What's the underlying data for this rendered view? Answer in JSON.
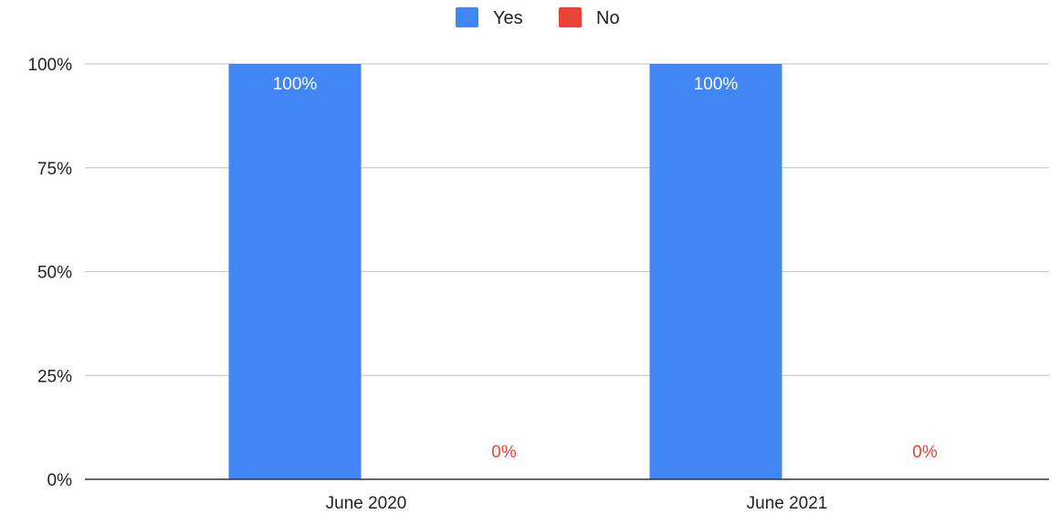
{
  "chart_data": {
    "type": "bar",
    "categories": [
      "June 2020",
      "June 2021"
    ],
    "series": [
      {
        "name": "Yes",
        "values": [
          100,
          100
        ],
        "color": "#4285f4",
        "labels": [
          "100%",
          "100%"
        ]
      },
      {
        "name": "No",
        "values": [
          0,
          0
        ],
        "color": "#ea4335",
        "labels": [
          "0%",
          "0%"
        ]
      }
    ],
    "ylim": [
      0,
      100
    ],
    "yticks": [
      {
        "value": 0,
        "label": "0%"
      },
      {
        "value": 25,
        "label": "25%"
      },
      {
        "value": 50,
        "label": "50%"
      },
      {
        "value": 75,
        "label": "75%"
      },
      {
        "value": 100,
        "label": "100%"
      }
    ],
    "grid": true,
    "legend_position": "top-center",
    "colors": {
      "grid": "#cccccc",
      "axis": "#333333",
      "text": "#222222",
      "label_on_bar": "#ffffff"
    }
  }
}
